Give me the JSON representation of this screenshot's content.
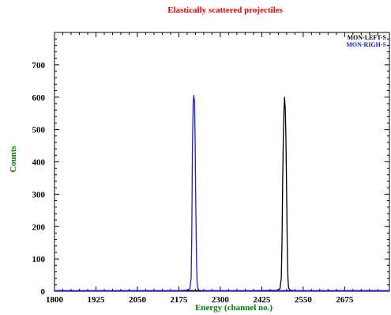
{
  "chart_data": {
    "type": "line",
    "title": "Elastically scattered projectiles",
    "xlabel": "Energy (channel no.)",
    "ylabel": "Counts",
    "xlim": [
      1800,
      2810
    ],
    "ylim": [
      0,
      800
    ],
    "xticks": [
      1800,
      1925,
      2050,
      2175,
      2300,
      2425,
      2550,
      2675
    ],
    "xtick_labels": [
      "1800",
      "1925",
      "2050",
      "2175",
      "2300",
      "2425",
      "2550",
      "2675"
    ],
    "yticks": [
      0,
      100,
      200,
      300,
      400,
      500,
      600,
      700
    ],
    "ytick_labels": [
      "0",
      "100",
      "200",
      "300",
      "400",
      "500",
      "600",
      "700"
    ],
    "legend_position": "top-right",
    "grid": false,
    "series": [
      {
        "name": "MON-LEFT-S",
        "color": "#000000",
        "x": [
          1800,
          1900,
          2000,
          2100,
          2200,
          2300,
          2400,
          2470,
          2480,
          2484,
          2486,
          2488,
          2490,
          2492,
          2494,
          2496,
          2498,
          2500,
          2502,
          2504,
          2506,
          2510,
          2520,
          2600,
          2700,
          2810
        ],
        "y": [
          2,
          2,
          2,
          2,
          2,
          2,
          2,
          3,
          8,
          40,
          150,
          330,
          480,
          560,
          600,
          560,
          470,
          300,
          130,
          40,
          10,
          4,
          2,
          2,
          2,
          2
        ]
      },
      {
        "name": "MON-RIGH-S",
        "color": "#1a1aff",
        "x": [
          1800,
          1900,
          2000,
          2100,
          2170,
          2200,
          2208,
          2212,
          2214,
          2216,
          2218,
          2220,
          2222,
          2224,
          2226,
          2228,
          2230,
          2232,
          2236,
          2245,
          2300,
          2810
        ],
        "y": [
          2,
          2,
          2,
          2,
          2,
          3,
          8,
          40,
          180,
          430,
          580,
          605,
          590,
          480,
          280,
          110,
          30,
          8,
          3,
          2,
          2,
          2
        ]
      }
    ]
  }
}
